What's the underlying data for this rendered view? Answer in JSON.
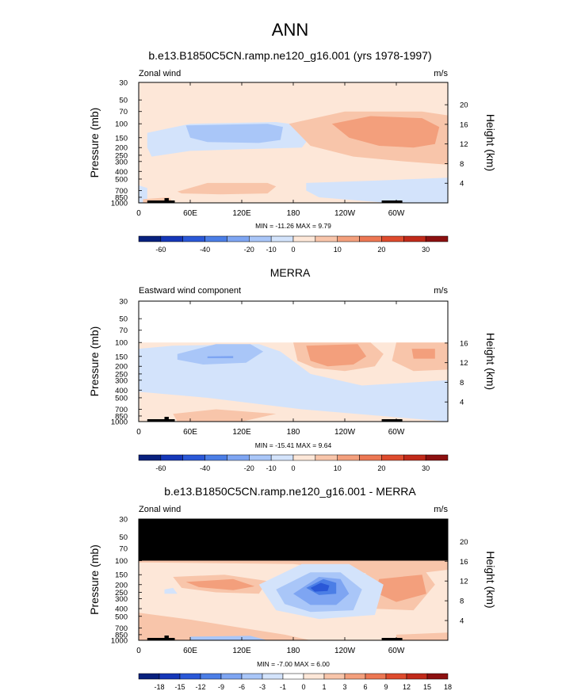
{
  "page": {
    "title": "ANN"
  },
  "shared": {
    "left_axis_label": "Pressure (mb)",
    "right_axis_label": "Height (km)",
    "x_ticks": [
      "0",
      "60E",
      "120E",
      "180",
      "120W",
      "60W"
    ],
    "pressure_ticks": [
      "30",
      "50",
      "70",
      "100",
      "150",
      "200",
      "250",
      "300",
      "400",
      "500",
      "700",
      "850",
      "1000"
    ]
  },
  "chart_data": [
    {
      "type": "heatmap",
      "title": "b.e13.B1850C5CN.ramp.ne120_g16.001 (yrs 1978-1997)",
      "left_label": "Zonal wind",
      "units": "m/s",
      "xlim": [
        0,
        360
      ],
      "ylim": [
        1000,
        30
      ],
      "y_scale": "log",
      "height_ticks": [
        "20",
        "16",
        "12",
        "8",
        "4"
      ],
      "min_max_text": "MIN = -11.26  MAX =  9.79",
      "min": -11.26,
      "max": 9.79,
      "colorbar_labels": [
        "-60",
        "-40",
        "-20",
        "-10",
        "0",
        "10",
        "20",
        "30"
      ]
    },
    {
      "type": "heatmap",
      "title": "MERRA",
      "left_label": "Eastward wind component",
      "units": "m/s",
      "xlim": [
        0,
        360
      ],
      "ylim": [
        1000,
        30
      ],
      "y_scale": "log",
      "height_ticks": [
        "16",
        "12",
        "8",
        "4"
      ],
      "min_max_text": "MIN = -15.41  MAX =  9.64",
      "min": -15.41,
      "max": 9.64,
      "colorbar_labels": [
        "-60",
        "-40",
        "-20",
        "-10",
        "0",
        "10",
        "20",
        "30"
      ]
    },
    {
      "type": "heatmap",
      "title": "b.e13.B1850C5CN.ramp.ne120_g16.001 - MERRA",
      "left_label": "Zonal wind",
      "units": "m/s",
      "xlim": [
        0,
        360
      ],
      "ylim": [
        1000,
        30
      ],
      "y_scale": "log",
      "height_ticks": [
        "20",
        "16",
        "12",
        "8",
        "4"
      ],
      "min_max_text": "MIN = -7.00  MAX =  6.00",
      "min": -7.0,
      "max": 6.0,
      "colorbar_labels": [
        "-18",
        "-15",
        "-12",
        "-9",
        "-6",
        "-3",
        "-1",
        "0",
        "1",
        "3",
        "6",
        "9",
        "12",
        "15",
        "18"
      ]
    }
  ],
  "colors": {
    "abs_palette": [
      "#08217e",
      "#1537b8",
      "#2a58d7",
      "#4b7ee6",
      "#7ea5f2",
      "#a9c6f8",
      "#d3e3fb",
      "#fde7d8",
      "#f8c5aa",
      "#f39f7c",
      "#ec7753",
      "#de4b2d",
      "#c12a1a",
      "#8c1010"
    ],
    "diff_palette": [
      "#08217e",
      "#1537b8",
      "#2a58d7",
      "#4b7ee6",
      "#7ea5f2",
      "#a9c6f8",
      "#d3e3fb",
      "#ffffff",
      "#fde7d8",
      "#f8c5aa",
      "#f39f7c",
      "#ec7753",
      "#de4b2d",
      "#c12a1a",
      "#8c1010"
    ],
    "weak_positive": "#fde7d8",
    "weak_negative": "#d3e3fb",
    "moderate_positive": "#f8c5aa",
    "moderate_negative": "#a9c6f8",
    "strong_positive": "#f39f7c",
    "strong_negative": "#7ea5f2",
    "stronger_negative": "#4b7ee6",
    "strongest_negative": "#2a58d7",
    "missing": "#000000"
  }
}
